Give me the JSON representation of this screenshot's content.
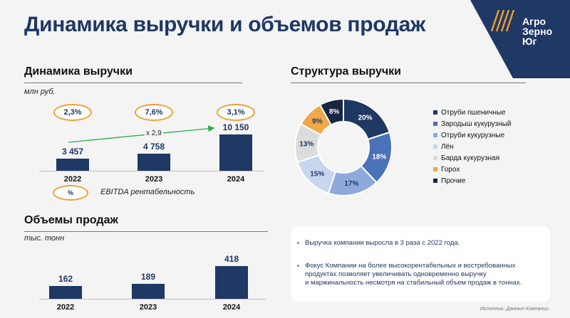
{
  "title": "Динамика выручки и объемов продаж",
  "logo": {
    "lines": [
      "Агро",
      "Зерно",
      "Юг"
    ]
  },
  "revenue": {
    "section_title": "Динамика выручки",
    "unit": "млн руб.",
    "growth_label": "x 2,9",
    "ebitda_legend_symbol": "%",
    "ebitda_legend_label": "EBITDA рентабельность",
    "accent_color": "#f0a030",
    "growth_arrow_color": "#2eaa4a"
  },
  "volumes": {
    "section_title": "Объемы продаж",
    "unit": "тыс. тонн"
  },
  "structure": {
    "section_title": "Структура выручки"
  },
  "notes": {
    "bullet": "▪",
    "items": [
      {
        "lines": [
          "Выручка компании выросла в 3 раза с 2022 года."
        ]
      },
      {
        "lines": [
          "Фокус Компании на более высокорентабельных  и востребованных",
          "продуктах позволяет увеличивать одновременно выручку",
          "и маржинальность несмотря на стабильный объем продаж в тоннах."
        ]
      }
    ]
  },
  "source": "Источник: Данные Компании",
  "colors": {
    "navy": "#1f3864",
    "background": "#f4f4f5"
  },
  "chart_data": [
    {
      "type": "bar",
      "title": "Динамика выручки",
      "ylabel": "млн руб.",
      "categories": [
        "2022",
        "2023",
        "2024"
      ],
      "values": [
        3457,
        4758,
        10150
      ],
      "value_labels": [
        "3 457",
        "4 758",
        "10 150"
      ],
      "ebitda_margin": [
        "2,3%",
        "7,6%",
        "3,1%"
      ],
      "ylim": [
        0,
        10150
      ]
    },
    {
      "type": "bar",
      "title": "Объемы продаж",
      "ylabel": "тыс. тонн",
      "categories": [
        "2022",
        "2023",
        "2024"
      ],
      "values": [
        162,
        189,
        418
      ],
      "value_labels": [
        "162",
        "189",
        "418"
      ],
      "ylim": [
        0,
        418
      ]
    },
    {
      "type": "pie",
      "title": "Структура выручки",
      "donut": true,
      "labels": [
        "Отруби пшеничные",
        "Зародыш кукурузный",
        "Отруби кукурузные",
        "Лён",
        "Барда кукурузная",
        "Горох",
        "Прочие"
      ],
      "values": [
        20,
        18,
        17,
        15,
        13,
        9,
        8
      ],
      "value_labels": [
        "20%",
        "18%",
        "17%",
        "15%",
        "13%",
        "9%",
        "8%"
      ],
      "colors": [
        "#1f3864",
        "#4a72b8",
        "#8eaadc",
        "#c8d6ee",
        "#dcdcdc",
        "#f0a848",
        "#1a2540"
      ],
      "legend_position": "right"
    }
  ]
}
